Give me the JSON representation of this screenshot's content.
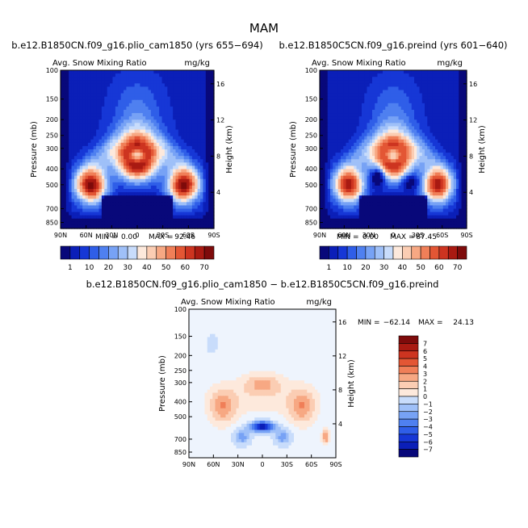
{
  "figure": {
    "title": "MAM"
  },
  "colors": {
    "diverging": [
      "#08087a",
      "#0b1fb8",
      "#1637d6",
      "#2f5ee8",
      "#4f80f0",
      "#77a2f5",
      "#9fc0f8",
      "#c8dcfb",
      "#eef4fd",
      "#fde9dc",
      "#fbcdb3",
      "#f7a883",
      "#f07f58",
      "#e35634",
      "#cd3420",
      "#a91a12",
      "#7e0b0b"
    ]
  },
  "panels": [
    {
      "title": "b.e12.B1850CN.f09_g16.plio_cam1850 (yrs 655−694)",
      "subtitle_left": "Avg. Snow Mixing Ratio",
      "subtitle_right": "mg/kg",
      "stats": {
        "min_label": "MIN =",
        "min": "0.00",
        "max_label": "MAX =",
        "max": "92.46"
      }
    },
    {
      "title": "b.e12.B1850C5CN.f09_g16.preind (yrs 601−640)",
      "subtitle_left": "Avg. Snow Mixing Ratio",
      "subtitle_right": "mg/kg",
      "stats": {
        "min_label": "MIN =",
        "min": "0.00",
        "max_label": "MAX =",
        "max": "87.45"
      }
    },
    {
      "title": "b.e12.B1850CN.f09_g16.plio_cam1850 − b.e12.B1850C5CN.f09_g16.preind",
      "subtitle_left": "Avg. Snow Mixing Ratio",
      "subtitle_right": "mg/kg",
      "stats": {
        "min_label": "MIN =",
        "min": "−62.14",
        "max_label": "MAX =",
        "max": "24.13"
      }
    }
  ],
  "chart_data": [
    {
      "type": "heatmap",
      "title": "b.e12.B1850CN.f09_g16.plio_cam1850 (yrs 655−694)",
      "xlabel": "",
      "ylabel": "Pressure (mb)",
      "y2label": "Height (km)",
      "xticks": [
        "90N",
        "60N",
        "30N",
        "0",
        "30S",
        "60S",
        "90S"
      ],
      "yticks": [
        100,
        150,
        200,
        250,
        300,
        400,
        500,
        700,
        850
      ],
      "y2ticks": [
        16,
        12,
        8,
        4
      ],
      "ylim": [
        100,
        925
      ],
      "min": 0.0,
      "max": 92.46
    },
    {
      "type": "heatmap",
      "title": "b.e12.B1850C5CN.f09_g16.preind (yrs 601−640)",
      "xlabel": "",
      "ylabel": "Pressure (mb)",
      "y2label": "Height (km)",
      "xticks": [
        "90N",
        "60N",
        "30N",
        "0",
        "30S",
        "60S",
        "90S"
      ],
      "yticks": [
        100,
        150,
        200,
        250,
        300,
        400,
        500,
        700,
        850
      ],
      "y2ticks": [
        16,
        12,
        8,
        4
      ],
      "ylim": [
        100,
        925
      ],
      "min": 0.0,
      "max": 87.45
    },
    {
      "type": "heatmap",
      "title": "b.e12.B1850CN.f09_g16.plio_cam1850 − b.e12.B1850C5CN.f09_g16.preind",
      "xlabel": "",
      "ylabel": "Pressure (mb)",
      "y2label": "Height (km)",
      "xticks": [
        "90N",
        "60N",
        "30N",
        "0",
        "30S",
        "60S",
        "90S"
      ],
      "yticks": [
        100,
        150,
        200,
        250,
        300,
        400,
        500,
        700,
        850
      ],
      "y2ticks": [
        16,
        12,
        8,
        4
      ],
      "ylim": [
        100,
        925
      ],
      "min": -62.14,
      "max": 24.13
    }
  ],
  "colorbar_top": {
    "labels": [
      "1",
      "10",
      "20",
      "30",
      "40",
      "50",
      "60",
      "70"
    ],
    "colors": [
      "#08087a",
      "#0b1fb8",
      "#1637d6",
      "#2f5ee8",
      "#4f80f0",
      "#77a2f5",
      "#9fc0f8",
      "#c8dcfb",
      "#fde9dc",
      "#fbcdb3",
      "#f7a883",
      "#f07f58",
      "#e35634",
      "#cd3420",
      "#a91a12",
      "#7e0b0b"
    ]
  },
  "colorbar_diff": {
    "labels": [
      "7",
      "6",
      "5",
      "4",
      "3",
      "2",
      "1",
      "0",
      "−1",
      "−2",
      "−3",
      "−4",
      "−5",
      "−6",
      "−7"
    ],
    "colors": [
      "#7e0b0b",
      "#a91a12",
      "#cd3420",
      "#e35634",
      "#f07f58",
      "#f7a883",
      "#fbcdb3",
      "#fde9dc",
      "#c8dcfb",
      "#9fc0f8",
      "#77a2f5",
      "#4f80f0",
      "#2f5ee8",
      "#1637d6",
      "#0b1fb8",
      "#08087a"
    ]
  }
}
